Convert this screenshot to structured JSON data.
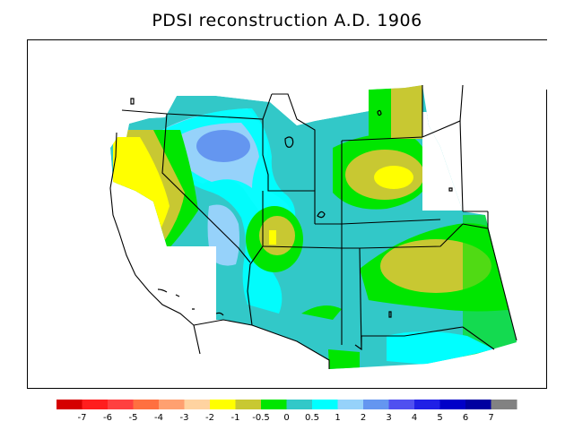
{
  "title": "PDSI reconstruction A.D. 1906",
  "legend": {
    "bins": [
      {
        "color": "#d50000"
      },
      {
        "color": "#ff1e1e"
      },
      {
        "color": "#ff4040"
      },
      {
        "color": "#ff7040"
      },
      {
        "color": "#ffa070"
      },
      {
        "color": "#ffd3a0"
      },
      {
        "color": "#ffff00"
      },
      {
        "color": "#c8c832"
      },
      {
        "color": "#00e600"
      },
      {
        "color": "#32c8c8"
      },
      {
        "color": "#00ffff"
      },
      {
        "color": "#96d2fa"
      },
      {
        "color": "#6496f0"
      },
      {
        "color": "#5050f0"
      },
      {
        "color": "#2020e6"
      },
      {
        "color": "#0000c8"
      },
      {
        "color": "#0000a0"
      },
      {
        "color": "#828282"
      }
    ],
    "labels": [
      "-7",
      "-6",
      "-5",
      "-4",
      "-3",
      "-2",
      "-1",
      "-0.5",
      "0",
      "0.5",
      "1",
      "2",
      "3",
      "4",
      "5",
      "6",
      "7"
    ]
  }
}
